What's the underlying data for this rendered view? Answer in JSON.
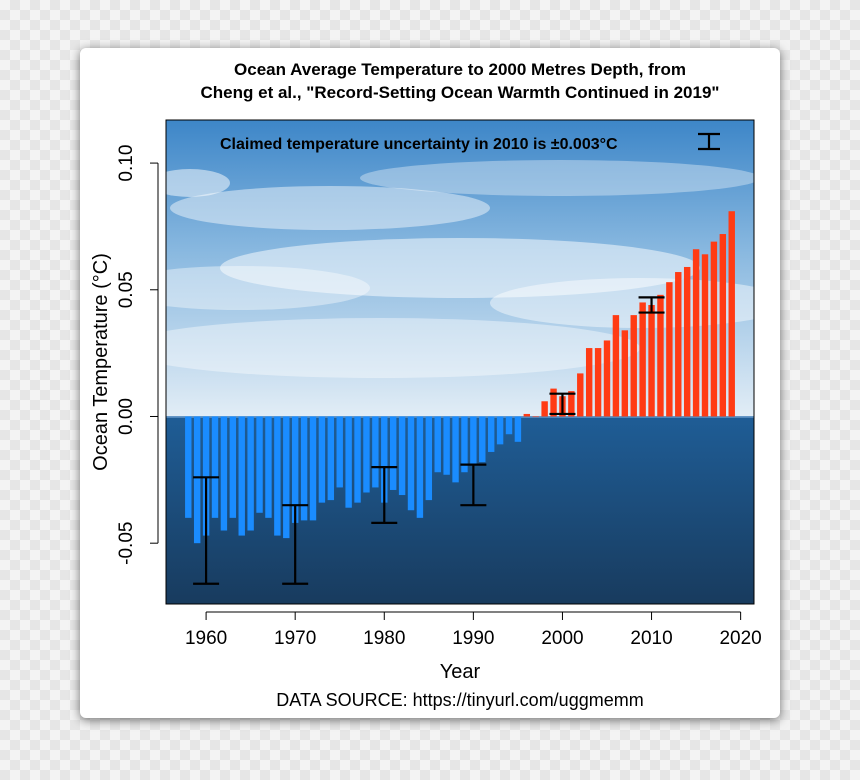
{
  "chart_data": {
    "type": "bar",
    "title_line1": "Ocean Average Temperature to 2000 Metres Depth, from",
    "title_line2": "Cheng et al., \"Record-Setting Ocean Warmth Continued in 2019\"",
    "xlabel": "Year",
    "ylabel": "Ocean Temperature (°C)",
    "source": "DATA SOURCE: https://tinyurl.com/uggmemm",
    "annotation": "Claimed temperature uncertainty in 2010 is ±0.003°C",
    "xlim": [
      1955.5,
      2021.5
    ],
    "ylim": [
      -0.074,
      0.117
    ],
    "x_ticks": [
      1960,
      1970,
      1980,
      1990,
      2000,
      2010,
      2020
    ],
    "y_ticks": [
      -0.05,
      0.0,
      0.05,
      0.1
    ],
    "y_tick_labels": [
      "-0.05",
      "0.00",
      "0.05",
      "0.10"
    ],
    "colors": {
      "negative": "#1a8cff",
      "positive": "#ff3b14",
      "error_bar": "#000000"
    },
    "x": [
      1958,
      1959,
      1960,
      1961,
      1962,
      1963,
      1964,
      1965,
      1966,
      1967,
      1968,
      1969,
      1970,
      1971,
      1972,
      1973,
      1974,
      1975,
      1976,
      1977,
      1978,
      1979,
      1980,
      1981,
      1982,
      1983,
      1984,
      1985,
      1986,
      1987,
      1988,
      1989,
      1990,
      1991,
      1992,
      1993,
      1994,
      1995,
      1996,
      1997,
      1998,
      1999,
      2000,
      2001,
      2002,
      2003,
      2004,
      2005,
      2006,
      2007,
      2008,
      2009,
      2010,
      2011,
      2012,
      2013,
      2014,
      2015,
      2016,
      2017,
      2018,
      2019
    ],
    "values": [
      -0.04,
      -0.05,
      -0.047,
      -0.04,
      -0.045,
      -0.04,
      -0.047,
      -0.045,
      -0.038,
      -0.04,
      -0.047,
      -0.048,
      -0.042,
      -0.041,
      -0.041,
      -0.034,
      -0.033,
      -0.028,
      -0.036,
      -0.034,
      -0.03,
      -0.028,
      -0.034,
      -0.029,
      -0.031,
      -0.037,
      -0.04,
      -0.033,
      -0.022,
      -0.023,
      -0.026,
      -0.022,
      -0.019,
      -0.018,
      -0.014,
      -0.011,
      -0.007,
      -0.01,
      0.001,
      0.0,
      0.006,
      0.011,
      0.008,
      0.01,
      0.017,
      0.027,
      0.027,
      0.03,
      0.04,
      0.034,
      0.04,
      0.045,
      0.044,
      0.048,
      0.053,
      0.057,
      0.059,
      0.066,
      0.064,
      0.069,
      0.072,
      0.081
    ],
    "error_bars": [
      {
        "x": 1960,
        "low": -0.066,
        "high": -0.024
      },
      {
        "x": 1970,
        "low": -0.066,
        "high": -0.035
      },
      {
        "x": 1980,
        "low": -0.042,
        "high": -0.02
      },
      {
        "x": 1990,
        "low": -0.035,
        "high": -0.019
      },
      {
        "x": 2000,
        "low": 0.001,
        "high": 0.009
      },
      {
        "x": 2010,
        "low": 0.041,
        "high": 0.047
      }
    ],
    "grid": false
  }
}
